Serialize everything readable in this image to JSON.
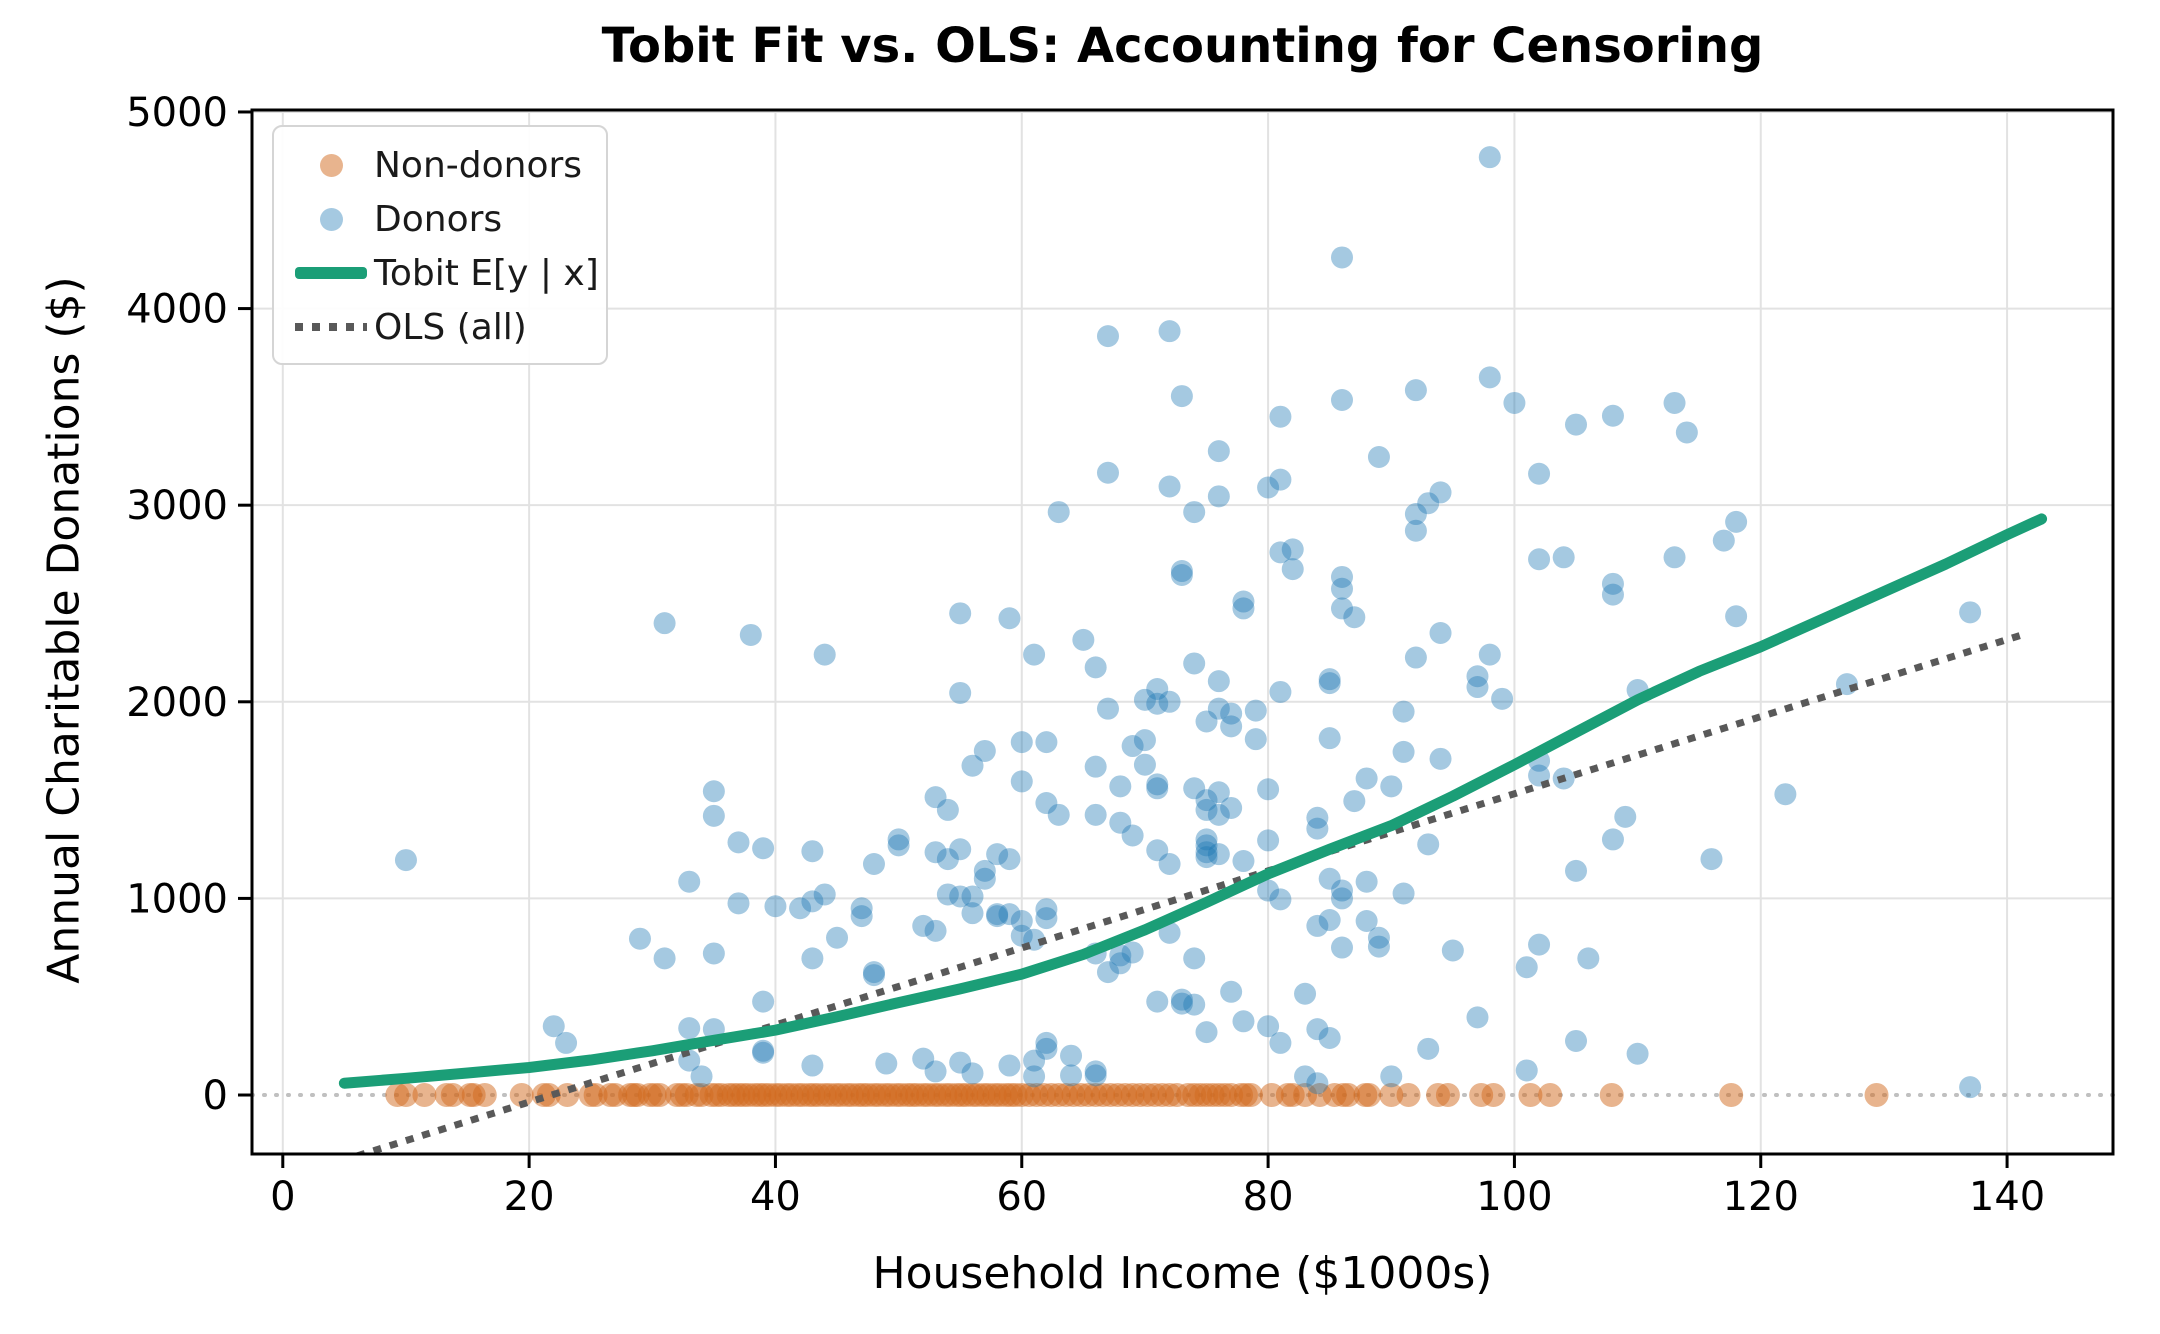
{
  "figure": {
    "title": "Tobit Fit vs. OLS: Accounting for Censoring",
    "xlabel": "Household Income ($1000s)",
    "ylabel": "Annual Charitable Donations ($)"
  },
  "legend": {
    "position": "upper left",
    "items": [
      {
        "id": "non-donors",
        "label": "Non-donors",
        "marker": "dot",
        "color": "#e8b48e"
      },
      {
        "id": "donors",
        "label": "Donors",
        "marker": "dot",
        "color": "#a5c9e1"
      },
      {
        "id": "tobit",
        "label": "Tobit E[y | x]",
        "marker": "line",
        "color": "#1b9e77"
      },
      {
        "id": "ols",
        "label": "OLS (all)",
        "marker": "dotted-line",
        "color": "#595959"
      }
    ]
  },
  "chart_data": {
    "type": "scatter",
    "title": "Tobit Fit vs. OLS: Accounting for Censoring",
    "xlabel": "Household Income ($1000s)",
    "ylabel": "Annual Charitable Donations ($)",
    "xlim": [
      -2.5,
      148.6
    ],
    "ylim": [
      -300,
      5010
    ],
    "xticks": [
      0,
      20,
      40,
      60,
      80,
      100,
      120,
      140
    ],
    "yticks": [
      0,
      1000,
      2000,
      3000,
      4000,
      5000
    ],
    "grid": true,
    "colors": {
      "donors": "#1f77b4",
      "donors_alpha": 0.4,
      "non_donors": "#d2691e",
      "non_donors_alpha": 0.5,
      "tobit": "#1b9e77",
      "ols": "#595959",
      "zero_line": "#c0c0c0",
      "grid": "#e2e2e2",
      "spine": "#000000"
    },
    "non_donors": {
      "name": "Non-donors",
      "y": 0,
      "x": [
        9.3,
        10.0,
        11.5,
        13.3,
        13.8,
        15.2,
        15.5,
        16.4,
        19.4,
        21.2,
        21.6,
        23.1,
        25.0,
        25.4,
        26.6,
        27.0,
        28.2,
        28.5,
        28.8,
        29.8,
        30.2,
        30.6,
        32.0,
        32.4,
        32.8,
        33.6,
        34.0,
        34.8,
        35.2,
        35.6,
        36.2,
        36.6,
        37.0,
        37.4,
        37.8,
        38.3,
        38.7,
        39.1,
        39.5,
        40.0,
        40.4,
        40.9,
        41.3,
        41.8,
        42.2,
        42.7,
        43.1,
        43.5,
        44.0,
        44.4,
        44.9,
        45.3,
        45.8,
        46.2,
        46.7,
        47.1,
        47.5,
        48.0,
        48.4,
        48.9,
        49.3,
        49.8,
        50.2,
        50.7,
        51.1,
        51.5,
        52.0,
        52.4,
        52.9,
        53.3,
        53.8,
        54.2,
        54.7,
        55.1,
        55.5,
        56.0,
        56.4,
        56.9,
        57.3,
        57.8,
        58.2,
        58.7,
        59.1,
        59.5,
        60.0,
        60.6,
        61.2,
        61.8,
        62.4,
        63.0,
        63.6,
        64.2,
        64.8,
        65.4,
        66.0,
        66.6,
        67.2,
        67.8,
        68.4,
        69.0,
        69.6,
        70.2,
        70.8,
        71.4,
        72.0,
        72.6,
        73.5,
        74.0,
        74.5,
        75.0,
        75.5,
        76.0,
        76.5,
        77.0,
        77.8,
        78.2,
        78.6,
        80.3,
        81.6,
        82.0,
        83.0,
        84.2,
        85.4,
        86.1,
        86.5,
        87.9,
        88.2,
        90.0,
        91.4,
        93.8,
        94.6,
        97.3,
        98.3,
        101.3,
        102.9,
        107.9,
        117.6,
        129.4
      ]
    },
    "donors": {
      "name": "Donors",
      "points": [
        [
          67,
          3860
        ],
        [
          72,
          3885
        ],
        [
          73,
          3555
        ],
        [
          98,
          4770
        ],
        [
          86,
          4260
        ],
        [
          98,
          3650
        ],
        [
          92,
          3585
        ],
        [
          86,
          3535
        ],
        [
          81,
          3450
        ],
        [
          100,
          3520
        ],
        [
          105,
          3410
        ],
        [
          108,
          3455
        ],
        [
          76,
          3275
        ],
        [
          89,
          3245
        ],
        [
          113,
          3520
        ],
        [
          114,
          3370
        ],
        [
          31,
          2400
        ],
        [
          35,
          1545
        ],
        [
          35,
          1420
        ],
        [
          67,
          3165
        ],
        [
          72,
          3095
        ],
        [
          63,
          2965
        ],
        [
          74,
          2965
        ],
        [
          73,
          2665
        ],
        [
          73,
          2645
        ],
        [
          55,
          2450
        ],
        [
          59,
          2425
        ],
        [
          38,
          2340
        ],
        [
          65,
          2315
        ],
        [
          44,
          2240
        ],
        [
          61,
          2240
        ],
        [
          66,
          2175
        ],
        [
          55,
          2045
        ],
        [
          71,
          2065
        ],
        [
          70,
          2010
        ],
        [
          71,
          1990
        ],
        [
          72,
          2000
        ],
        [
          67,
          1965
        ],
        [
          60,
          1795
        ],
        [
          62,
          1795
        ],
        [
          57,
          1750
        ],
        [
          69,
          1775
        ],
        [
          70,
          1805
        ],
        [
          56,
          1675
        ],
        [
          66,
          1670
        ],
        [
          70,
          1680
        ],
        [
          60,
          1595
        ],
        [
          68,
          1570
        ],
        [
          71,
          1580
        ],
        [
          71,
          1560
        ],
        [
          53,
          1515
        ],
        [
          62,
          1485
        ],
        [
          54,
          1450
        ],
        [
          102,
          3160
        ],
        [
          80,
          3090
        ],
        [
          81,
          3130
        ],
        [
          76,
          3045
        ],
        [
          94,
          3065
        ],
        [
          93,
          3010
        ],
        [
          92,
          2955
        ],
        [
          92,
          2870
        ],
        [
          81,
          2760
        ],
        [
          82,
          2775
        ],
        [
          82,
          2675
        ],
        [
          102,
          2725
        ],
        [
          104,
          2735
        ],
        [
          86,
          2635
        ],
        [
          86,
          2575
        ],
        [
          108,
          2600
        ],
        [
          108,
          2545
        ],
        [
          78,
          2510
        ],
        [
          78,
          2475
        ],
        [
          86,
          2475
        ],
        [
          87,
          2430
        ],
        [
          94,
          2350
        ],
        [
          92,
          2225
        ],
        [
          98,
          2240
        ],
        [
          74,
          2195
        ],
        [
          76,
          2105
        ],
        [
          85,
          2115
        ],
        [
          85,
          2095
        ],
        [
          81,
          2050
        ],
        [
          97,
          2130
        ],
        [
          97,
          2075
        ],
        [
          99,
          2015
        ],
        [
          110,
          2060
        ],
        [
          76,
          1965
        ],
        [
          77,
          1940
        ],
        [
          75,
          1900
        ],
        [
          77,
          1875
        ],
        [
          79,
          1955
        ],
        [
          91,
          1950
        ],
        [
          79,
          1810
        ],
        [
          85,
          1815
        ],
        [
          91,
          1745
        ],
        [
          94,
          1710
        ],
        [
          102,
          1700
        ],
        [
          102,
          1625
        ],
        [
          104,
          1610
        ],
        [
          88,
          1610
        ],
        [
          90,
          1570
        ],
        [
          74,
          1560
        ],
        [
          76,
          1540
        ],
        [
          75,
          1500
        ],
        [
          80,
          1555
        ],
        [
          87,
          1495
        ],
        [
          77,
          1460
        ],
        [
          118,
          2915
        ],
        [
          117,
          2820
        ],
        [
          113,
          2735
        ],
        [
          118,
          2435
        ],
        [
          137,
          2455
        ],
        [
          127,
          2090
        ],
        [
          122,
          1530
        ],
        [
          10,
          1195
        ],
        [
          33,
          1085
        ],
        [
          29,
          795
        ],
        [
          31,
          695
        ],
        [
          35,
          720
        ],
        [
          22,
          350
        ],
        [
          23,
          265
        ],
        [
          33,
          340
        ],
        [
          33,
          175
        ],
        [
          34,
          95
        ],
        [
          35,
          335
        ],
        [
          37,
          1285
        ],
        [
          39,
          1255
        ],
        [
          43,
          1240
        ],
        [
          63,
          1425
        ],
        [
          66,
          1425
        ],
        [
          68,
          1385
        ],
        [
          69,
          1320
        ],
        [
          71,
          1245
        ],
        [
          72,
          1175
        ],
        [
          48,
          1175
        ],
        [
          50,
          1300
        ],
        [
          50,
          1270
        ],
        [
          53,
          1235
        ],
        [
          54,
          1200
        ],
        [
          55,
          1250
        ],
        [
          56,
          1010
        ],
        [
          57,
          1140
        ],
        [
          57,
          1100
        ],
        [
          58,
          1225
        ],
        [
          59,
          1200
        ],
        [
          37,
          975
        ],
        [
          40,
          960
        ],
        [
          42,
          950
        ],
        [
          43,
          985
        ],
        [
          44,
          1020
        ],
        [
          47,
          950
        ],
        [
          47,
          910
        ],
        [
          52,
          860
        ],
        [
          53,
          835
        ],
        [
          54,
          1020
        ],
        [
          55,
          1010
        ],
        [
          56,
          925
        ],
        [
          58,
          920
        ],
        [
          58,
          910
        ],
        [
          59,
          920
        ],
        [
          60,
          885
        ],
        [
          60,
          810
        ],
        [
          61,
          790
        ],
        [
          62,
          945
        ],
        [
          62,
          900
        ],
        [
          66,
          720
        ],
        [
          67,
          625
        ],
        [
          68,
          710
        ],
        [
          68,
          670
        ],
        [
          69,
          725
        ],
        [
          71,
          475
        ],
        [
          72,
          825
        ],
        [
          73,
          485
        ],
        [
          39,
          475
        ],
        [
          39,
          215
        ],
        [
          39,
          225
        ],
        [
          43,
          150
        ],
        [
          49,
          160
        ],
        [
          52,
          185
        ],
        [
          53,
          120
        ],
        [
          55,
          165
        ],
        [
          56,
          110
        ],
        [
          59,
          150
        ],
        [
          61,
          175
        ],
        [
          61,
          95
        ],
        [
          64,
          200
        ],
        [
          64,
          100
        ],
        [
          66,
          120
        ],
        [
          66,
          100
        ],
        [
          62,
          265
        ],
        [
          62,
          235
        ],
        [
          48,
          625
        ],
        [
          48,
          610
        ],
        [
          43,
          695
        ],
        [
          45,
          800
        ],
        [
          75,
          1450
        ],
        [
          76,
          1425
        ],
        [
          84,
          1410
        ],
        [
          84,
          1355
        ],
        [
          80,
          1295
        ],
        [
          75,
          1300
        ],
        [
          75,
          1270
        ],
        [
          76,
          1225
        ],
        [
          75,
          1235
        ],
        [
          75,
          1210
        ],
        [
          78,
          1190
        ],
        [
          80,
          1040
        ],
        [
          85,
          1100
        ],
        [
          86,
          1040
        ],
        [
          86,
          1000
        ],
        [
          88,
          1085
        ],
        [
          91,
          1025
        ],
        [
          93,
          1275
        ],
        [
          105,
          1140
        ],
        [
          109,
          1415
        ],
        [
          108,
          1300
        ],
        [
          81,
          995
        ],
        [
          85,
          890
        ],
        [
          84,
          860
        ],
        [
          88,
          885
        ],
        [
          89,
          800
        ],
        [
          89,
          755
        ],
        [
          86,
          750
        ],
        [
          95,
          735
        ],
        [
          101,
          650
        ],
        [
          102,
          765
        ],
        [
          106,
          695
        ],
        [
          74,
          695
        ],
        [
          73,
          465
        ],
        [
          74,
          460
        ],
        [
          77,
          525
        ],
        [
          78,
          375
        ],
        [
          75,
          320
        ],
        [
          83,
          515
        ],
        [
          80,
          350
        ],
        [
          81,
          265
        ],
        [
          84,
          335
        ],
        [
          85,
          290
        ],
        [
          93,
          235
        ],
        [
          97,
          395
        ],
        [
          105,
          275
        ],
        [
          110,
          210
        ],
        [
          101,
          125
        ],
        [
          90,
          95
        ],
        [
          83,
          95
        ],
        [
          84,
          60
        ],
        [
          116,
          1200
        ],
        [
          137,
          40
        ]
      ]
    },
    "tobit_curve": {
      "name": "Tobit E[y | x]",
      "points": [
        [
          5,
          60
        ],
        [
          10,
          85
        ],
        [
          15,
          112
        ],
        [
          20,
          140
        ],
        [
          25,
          178
        ],
        [
          30,
          225
        ],
        [
          35,
          278
        ],
        [
          40,
          330
        ],
        [
          45,
          398
        ],
        [
          50,
          470
        ],
        [
          55,
          540
        ],
        [
          60,
          615
        ],
        [
          65,
          715
        ],
        [
          70,
          840
        ],
        [
          75,
          980
        ],
        [
          80,
          1125
        ],
        [
          85,
          1250
        ],
        [
          90,
          1370
        ],
        [
          95,
          1520
        ],
        [
          100,
          1680
        ],
        [
          105,
          1845
        ],
        [
          110,
          2010
        ],
        [
          115,
          2155
        ],
        [
          120,
          2280
        ],
        [
          125,
          2420
        ],
        [
          130,
          2560
        ],
        [
          135,
          2700
        ],
        [
          140,
          2850
        ],
        [
          142.8,
          2930
        ]
      ]
    },
    "ols_line": {
      "name": "OLS (all)",
      "style": "dotted",
      "slope": 19.6,
      "intercept": -427,
      "zero_crossing_x": 21.8,
      "points": [
        [
          5,
          -330
        ],
        [
          141.2,
          2340
        ]
      ]
    },
    "zero_reference_line": {
      "y": 0,
      "style": "dotted"
    }
  }
}
